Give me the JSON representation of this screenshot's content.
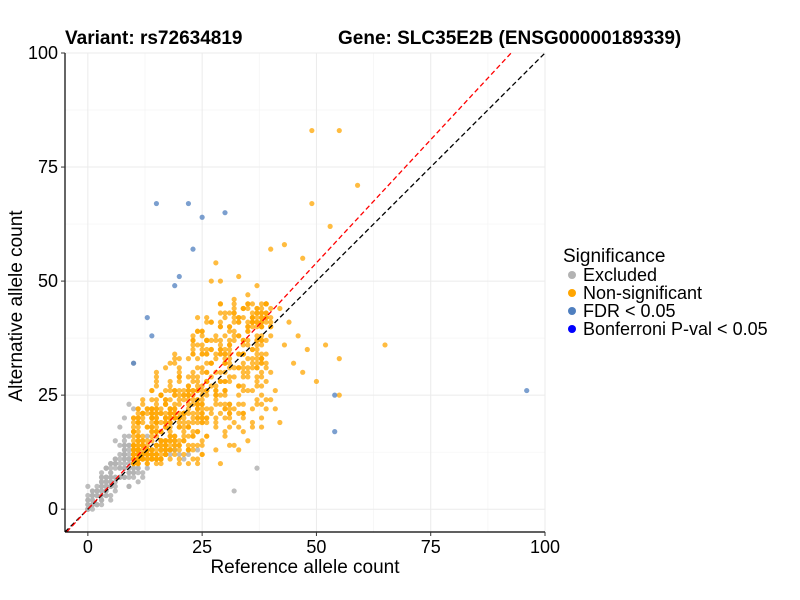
{
  "title_left": "Variant: rs72634819",
  "title_right": "Gene: SLC35E2B (ENSG00000189339)",
  "chart_data": {
    "type": "scatter",
    "xlabel": "Reference allele count",
    "ylabel": "Alternative allele count",
    "xlim": [
      -5,
      100
    ],
    "ylim": [
      -5,
      100
    ],
    "xticks": [
      0,
      25,
      50,
      75,
      100
    ],
    "yticks": [
      0,
      25,
      50,
      75,
      100
    ],
    "grid": true,
    "legend_position": "right",
    "legend_title": "Significance",
    "reference_lines": [
      {
        "name": "identity",
        "slope": 1.0,
        "intercept": 0,
        "color": "#000000",
        "style": "dashed"
      },
      {
        "name": "expected-ratio",
        "slope": 1.08,
        "intercept": 0,
        "color": "#ff0000",
        "style": "dashed"
      }
    ],
    "series": [
      {
        "name": "Excluded",
        "color": "#b3b3b3",
        "cluster": {
          "x_range": [
            0,
            12
          ],
          "y_range": [
            0,
            24
          ],
          "count": 190,
          "note": "dense cloud of low-count samples"
        },
        "points": [
          [
            10,
            32
          ],
          [
            9,
            23
          ],
          [
            10,
            22
          ],
          [
            8,
            20
          ],
          [
            7,
            18
          ],
          [
            11,
            19
          ],
          [
            12,
            21
          ],
          [
            6,
            15
          ],
          [
            13,
            16
          ],
          [
            15,
            14
          ],
          [
            17,
            13
          ],
          [
            19,
            13
          ],
          [
            20,
            12
          ],
          [
            22,
            12
          ],
          [
            24,
            13
          ],
          [
            18,
            12
          ],
          [
            16,
            11
          ],
          [
            14,
            11
          ],
          [
            13,
            9
          ],
          [
            12,
            7
          ],
          [
            11,
            6
          ],
          [
            4,
            3
          ],
          [
            3,
            2
          ],
          [
            2,
            1
          ],
          [
            1,
            1
          ],
          [
            2,
            4
          ],
          [
            4,
            6
          ],
          [
            3,
            8
          ],
          [
            5,
            10
          ],
          [
            0,
            5
          ],
          [
            37,
            9
          ],
          [
            32,
            4
          ],
          [
            14,
            12
          ],
          [
            21,
            11
          ]
        ]
      },
      {
        "name": "Non-significant",
        "color": "#ffa500",
        "cluster": {
          "x_range": [
            10,
            40
          ],
          "y_range": [
            10,
            45
          ],
          "count": 700,
          "note": "dense cloud along the diagonal"
        },
        "points": [
          [
            49,
            83
          ],
          [
            55,
            83
          ],
          [
            59,
            71
          ],
          [
            49,
            67
          ],
          [
            53,
            62
          ],
          [
            43,
            58
          ],
          [
            47,
            55
          ],
          [
            40,
            57
          ],
          [
            28,
            54
          ],
          [
            33,
            51
          ],
          [
            27,
            50
          ],
          [
            29,
            50
          ],
          [
            32,
            46
          ],
          [
            35,
            47
          ],
          [
            37,
            49
          ],
          [
            39,
            45
          ],
          [
            42,
            44
          ],
          [
            44,
            41
          ],
          [
            46,
            38
          ],
          [
            48,
            35
          ],
          [
            45,
            32
          ],
          [
            52,
            36
          ],
          [
            55,
            33
          ],
          [
            65,
            36
          ],
          [
            55,
            25
          ],
          [
            50,
            28
          ],
          [
            47,
            30
          ],
          [
            38,
            40
          ],
          [
            36,
            42
          ],
          [
            40,
            38
          ],
          [
            43,
            36
          ],
          [
            35,
            30
          ],
          [
            37,
            27
          ],
          [
            39,
            24
          ],
          [
            41,
            22
          ],
          [
            42,
            19
          ],
          [
            34,
            20
          ],
          [
            30,
            17
          ],
          [
            32,
            14
          ],
          [
            35,
            15
          ],
          [
            28,
            13
          ],
          [
            25,
            12
          ],
          [
            22,
            10
          ],
          [
            40,
            30
          ],
          [
            41,
            26
          ],
          [
            36,
            22
          ],
          [
            33,
            23
          ],
          [
            31,
            21
          ]
        ]
      },
      {
        "name": "FDR < 0.05",
        "color": "#4f7fbf",
        "points": [
          [
            15,
            67
          ],
          [
            22,
            67
          ],
          [
            25,
            64
          ],
          [
            30,
            65
          ],
          [
            23,
            57
          ],
          [
            20,
            51
          ],
          [
            19,
            49
          ],
          [
            13,
            42
          ],
          [
            14,
            38
          ],
          [
            10,
            32
          ],
          [
            54,
            25
          ],
          [
            54,
            17
          ],
          [
            96,
            26
          ]
        ]
      },
      {
        "name": "Bonferroni P-val < 0.05",
        "color": "#0000ff",
        "points": []
      }
    ]
  }
}
